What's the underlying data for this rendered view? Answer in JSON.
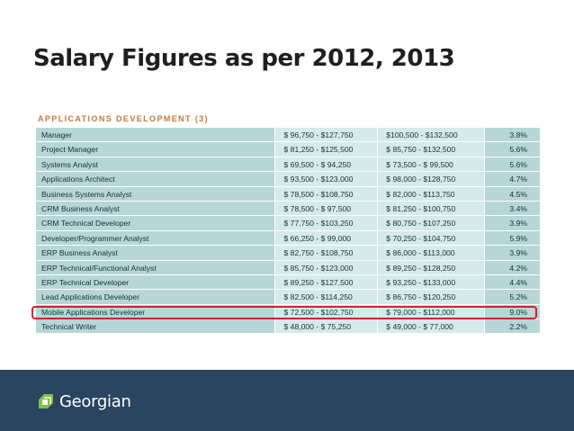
{
  "slide": {
    "title": "Salary Figures as per 2012, 2013"
  },
  "table": {
    "section_heading": "APPLICATIONS DEVELOPMENT (3)",
    "highlighted_row_index": 12,
    "rows": [
      {
        "title": "Manager",
        "range_2012": "$ 96,750 - $127,750",
        "range_2013": "$100,500 - $132,500",
        "change": "3.8%"
      },
      {
        "title": "Project Manager",
        "range_2012": "$ 81,250 - $125,500",
        "range_2013": "$ 85,750 - $132,500",
        "change": "5.6%"
      },
      {
        "title": "Systems Analyst",
        "range_2012": "$ 69,500 - $ 94,250",
        "range_2013": "$ 73,500 - $ 99,500",
        "change": "5.6%"
      },
      {
        "title": "Applications Architect",
        "range_2012": "$ 93,500 - $123,000",
        "range_2013": "$ 98,000 - $128,750",
        "change": "4.7%"
      },
      {
        "title": "Business Systems Analyst",
        "range_2012": "$ 78,500 - $108,750",
        "range_2013": "$ 82,000 - $113,750",
        "change": "4.5%"
      },
      {
        "title": "CRM Business Analyst",
        "range_2012": "$ 78,500 - $ 97,500",
        "range_2013": "$ 81,250 - $100,750",
        "change": "3.4%"
      },
      {
        "title": "CRM Technical Developer",
        "range_2012": "$ 77,750 - $103,250",
        "range_2013": "$ 80,750 - $107,250",
        "change": "3.9%"
      },
      {
        "title": "Developer/Programmer Analyst",
        "range_2012": "$ 66,250 - $ 99,000",
        "range_2013": "$ 70,250 - $104,750",
        "change": "5.9%"
      },
      {
        "title": "ERP Business Analyst",
        "range_2012": "$ 82,750 - $108,750",
        "range_2013": "$ 86,000 - $113,000",
        "change": "3.9%"
      },
      {
        "title": "ERP Technical/Functional Analyst",
        "range_2012": "$ 85,750 - $123,000",
        "range_2013": "$ 89,250 - $128,250",
        "change": "4.2%"
      },
      {
        "title": "ERP Technical Developer",
        "range_2012": "$ 89,250 - $127,500",
        "range_2013": "$ 93,250 - $133,000",
        "change": "4.4%"
      },
      {
        "title": "Lead Applications Developer",
        "range_2012": "$ 82,500 - $114,250",
        "range_2013": "$ 86,750 - $120,250",
        "change": "5.2%"
      },
      {
        "title": "Mobile Applications Developer",
        "range_2012": "$ 72,500 - $102,750",
        "range_2013": "$ 79,000 - $112,000",
        "change": "9.0%"
      },
      {
        "title": "Technical Writer",
        "range_2012": "$ 48,000 - $ 75,250",
        "range_2013": "$ 49,000 - $ 77,000",
        "change": "2.2%"
      }
    ]
  },
  "footer": {
    "logo_text": "Georgian",
    "logo_icon": "georgian-logo-icon",
    "colors": {
      "bar": "#2b4560",
      "logo_mark": "#7fc241",
      "highlight": "#d2232a"
    }
  }
}
